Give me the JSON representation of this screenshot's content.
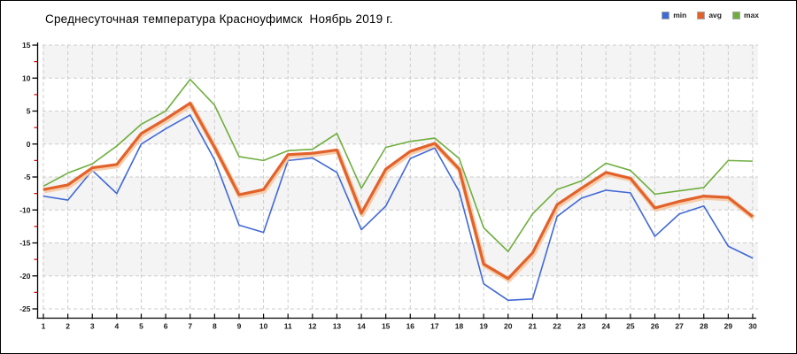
{
  "title": "Среднесуточная температура Красноуфимск  Ноябрь 2019 г.",
  "chart_data": {
    "type": "line",
    "title": "Среднесуточная температура Красноуфимск  Ноябрь 2019 г.",
    "xlabel": "",
    "ylabel": "",
    "x": [
      1,
      2,
      3,
      4,
      5,
      6,
      7,
      8,
      9,
      10,
      11,
      12,
      13,
      14,
      15,
      16,
      17,
      18,
      19,
      20,
      21,
      22,
      23,
      24,
      25,
      26,
      27,
      28,
      29,
      30
    ],
    "ylim": [
      -25,
      15
    ],
    "ytick_step": 5,
    "ytick_minor_step": 2.5,
    "grid": true,
    "legend_position": "top-right",
    "band_colors": [
      "#f4f4f4",
      "#ffffff"
    ],
    "grid_color": "#cccccc",
    "axis_color": "#000000",
    "minor_tick_color": "#cc0000",
    "series": [
      {
        "name": "min",
        "color": "#4169d6",
        "values": [
          -7.9,
          -8.5,
          -4.0,
          -7.5,
          0.0,
          2.3,
          4.4,
          -2.4,
          -12.3,
          -13.4,
          -2.5,
          -2.1,
          -4.3,
          -13.0,
          -9.4,
          -2.2,
          -0.6,
          -7.2,
          -21.2,
          -23.7,
          -23.5,
          -11.0,
          -8.2,
          -7.0,
          -7.4,
          -14.0,
          -10.6,
          -9.4,
          -15.5,
          -17.3
        ]
      },
      {
        "name": "avg",
        "color": "#e2622b",
        "halo_color": "#f6c59e",
        "values": [
          -6.9,
          -6.2,
          -3.6,
          -3.1,
          1.6,
          3.8,
          6.2,
          -0.5,
          -7.7,
          -6.9,
          -1.6,
          -1.4,
          -0.9,
          -10.5,
          -3.8,
          -1.1,
          0.1,
          -3.8,
          -18.2,
          -20.4,
          -16.5,
          -9.2,
          -6.7,
          -4.3,
          -5.2,
          -9.7,
          -8.7,
          -7.9,
          -8.1,
          -11.0
        ]
      },
      {
        "name": "max",
        "color": "#6fae3e",
        "values": [
          -6.4,
          -4.4,
          -3.0,
          -0.3,
          3.0,
          5.0,
          9.8,
          5.9,
          -1.9,
          -2.5,
          -1.0,
          -0.8,
          1.6,
          -6.7,
          -0.5,
          0.4,
          0.9,
          -2.2,
          -12.7,
          -16.3,
          -10.6,
          -6.9,
          -5.6,
          -2.9,
          -4.0,
          -7.6,
          -7.1,
          -6.6,
          -2.5,
          -2.6
        ]
      }
    ]
  }
}
